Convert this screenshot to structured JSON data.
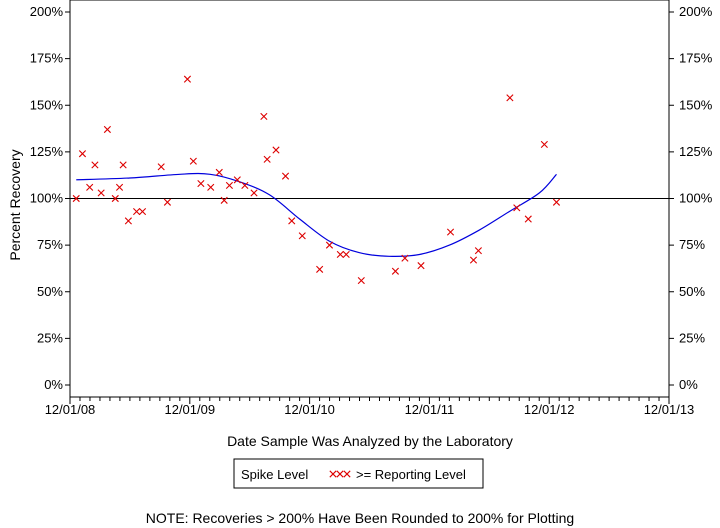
{
  "chart_data": {
    "type": "scatter",
    "title": "",
    "xlabel": "Date Sample Was Analyzed by the Laboratory",
    "ylabel": "Percent Recovery",
    "x_ticks": [
      "12/01/08",
      "12/01/09",
      "12/01/10",
      "12/01/11",
      "12/01/12",
      "12/01/13"
    ],
    "xlim": [
      "2008-12-01",
      "2013-12-01"
    ],
    "y_ticks": [
      "0%",
      "25%",
      "50%",
      "75%",
      "100%",
      "125%",
      "150%",
      "175%",
      "200%"
    ],
    "ylim": [
      0,
      200
    ],
    "reference_line": 100,
    "grid": false,
    "colors": {
      "points": "#dd0000",
      "trend": "#0000dd",
      "axes": "#000000"
    },
    "series": [
      {
        "name": ">= Reporting Level",
        "marker": "x",
        "points": [
          [
            "2008-12-20",
            100
          ],
          [
            "2009-01-08",
            124
          ],
          [
            "2009-01-30",
            106
          ],
          [
            "2009-02-15",
            118
          ],
          [
            "2009-03-06",
            103
          ],
          [
            "2009-03-25",
            137
          ],
          [
            "2009-04-18",
            100
          ],
          [
            "2009-05-01",
            106
          ],
          [
            "2009-05-12",
            118
          ],
          [
            "2009-05-28",
            88
          ],
          [
            "2009-06-22",
            93
          ],
          [
            "2009-07-10",
            93
          ],
          [
            "2009-09-05",
            117
          ],
          [
            "2009-09-24",
            98
          ],
          [
            "2009-11-24",
            164
          ],
          [
            "2009-12-12",
            120
          ],
          [
            "2010-01-04",
            108
          ],
          [
            "2010-02-03",
            106
          ],
          [
            "2010-03-01",
            114
          ],
          [
            "2010-03-16",
            99
          ],
          [
            "2010-04-01",
            107
          ],
          [
            "2010-04-25",
            110
          ],
          [
            "2010-05-18",
            107
          ],
          [
            "2010-06-15",
            103
          ],
          [
            "2010-07-15",
            144
          ],
          [
            "2010-07-25",
            121
          ],
          [
            "2010-08-21",
            126
          ],
          [
            "2010-09-19",
            112
          ],
          [
            "2010-10-08",
            88
          ],
          [
            "2010-11-09",
            80
          ],
          [
            "2011-01-01",
            62
          ],
          [
            "2011-01-31",
            75
          ],
          [
            "2011-03-05",
            70
          ],
          [
            "2011-03-23",
            70
          ],
          [
            "2011-05-08",
            56
          ],
          [
            "2011-08-20",
            61
          ],
          [
            "2011-09-18",
            68
          ],
          [
            "2011-11-06",
            64
          ],
          [
            "2012-02-04",
            82
          ],
          [
            "2012-04-14",
            67
          ],
          [
            "2012-04-29",
            72
          ],
          [
            "2012-08-03",
            154
          ],
          [
            "2012-08-24",
            95
          ],
          [
            "2012-09-28",
            89
          ],
          [
            "2012-11-16",
            129
          ],
          [
            "2012-12-23",
            98
          ]
        ]
      },
      {
        "name": "trend",
        "type": "line",
        "points": [
          [
            "2008-12-20",
            110
          ],
          [
            "2009-06-01",
            111
          ],
          [
            "2009-11-01",
            113
          ],
          [
            "2010-02-01",
            113
          ],
          [
            "2010-05-01",
            109
          ],
          [
            "2010-08-01",
            102
          ],
          [
            "2010-11-01",
            89
          ],
          [
            "2011-02-01",
            77
          ],
          [
            "2011-05-01",
            71
          ],
          [
            "2011-08-01",
            69
          ],
          [
            "2011-11-01",
            70
          ],
          [
            "2012-02-01",
            75
          ],
          [
            "2012-05-01",
            83
          ],
          [
            "2012-08-01",
            93
          ],
          [
            "2012-11-01",
            103
          ],
          [
            "2012-12-23",
            113
          ]
        ]
      }
    ],
    "legend": {
      "placement": "bottom-center",
      "label_left": "Spike Level",
      "marker_text": "xxx",
      "label_right": ">= Reporting Level"
    },
    "note": "NOTE: Recoveries > 200% Have Been Rounded to 200% for Plotting"
  }
}
